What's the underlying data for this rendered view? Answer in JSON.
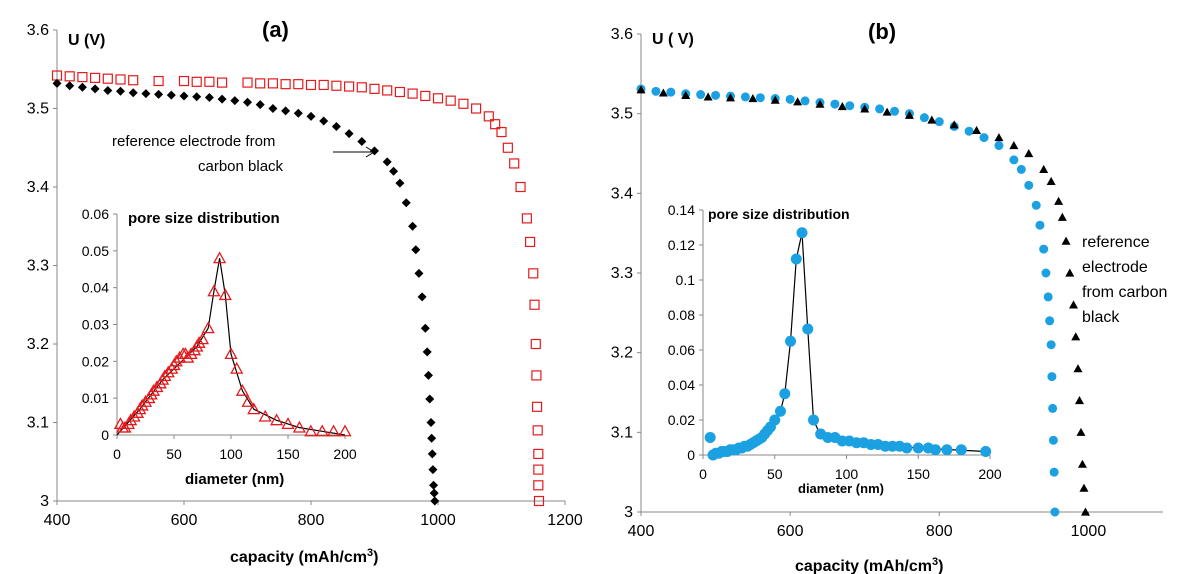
{
  "figure": {
    "a": {
      "panel_label": "(a)",
      "ylabel": "U (V)",
      "xlabel_main": "capacity  (mAh/cm",
      "xlabel_sup": "3",
      "xlabel_close": ")",
      "annotation_line1": "reference electrode  from",
      "annotation_line2": "carbon black",
      "inset_title": "pore size distribution",
      "inset_xlabel": "diameter (nm)"
    },
    "b": {
      "panel_label": "(b)",
      "ylabel": "U ( V)",
      "xlabel_main": "capacity  (mAh/cm",
      "xlabel_sup": "3",
      "xlabel_close": ")",
      "annotation_lines": [
        "reference",
        "electrode",
        "from carbon",
        "black"
      ],
      "inset_title": "pore size distribution",
      "inset_xlabel": "diameter (nm)"
    }
  },
  "chart_data": [
    {
      "panel": "(a)",
      "type": "scatter",
      "title": "",
      "xlabel": "capacity  (mAh/cm3)",
      "ylabel": "U (V)",
      "xlim": [
        400,
        1200
      ],
      "ylim": [
        3.0,
        3.6
      ],
      "xticks": [
        400,
        600,
        800,
        1000,
        1200
      ],
      "yticks": [
        3,
        3.1,
        3.2,
        3.3,
        3.4,
        3.5,
        3.6
      ],
      "grid": false,
      "series": [
        {
          "marker": "open-square",
          "color": "#e41a1c",
          "x": [
            400,
            420,
            440,
            460,
            480,
            500,
            520,
            560,
            600,
            620,
            640,
            660,
            700,
            720,
            740,
            760,
            780,
            800,
            820,
            840,
            860,
            880,
            900,
            920,
            940,
            960,
            980,
            1000,
            1020,
            1040,
            1060,
            1080,
            1090,
            1100,
            1110,
            1120,
            1130,
            1140,
            1145,
            1150,
            1152,
            1154,
            1155,
            1156,
            1157,
            1158,
            1158,
            1158,
            1159
          ],
          "y": [
            3.542,
            3.541,
            3.54,
            3.539,
            3.538,
            3.537,
            3.536,
            3.535,
            3.535,
            3.534,
            3.534,
            3.533,
            3.533,
            3.532,
            3.532,
            3.531,
            3.531,
            3.53,
            3.53,
            3.529,
            3.528,
            3.527,
            3.525,
            3.523,
            3.521,
            3.519,
            3.516,
            3.513,
            3.51,
            3.506,
            3.5,
            3.49,
            3.48,
            3.47,
            3.45,
            3.43,
            3.4,
            3.36,
            3.33,
            3.29,
            3.25,
            3.2,
            3.16,
            3.12,
            3.09,
            3.06,
            3.04,
            3.02,
            3.0
          ]
        },
        {
          "marker": "filled-diamond",
          "color": "#000000",
          "x": [
            400,
            420,
            440,
            460,
            480,
            500,
            520,
            540,
            560,
            580,
            600,
            620,
            640,
            660,
            680,
            700,
            720,
            740,
            760,
            780,
            800,
            820,
            840,
            860,
            880,
            900,
            920,
            930,
            940,
            950,
            960,
            965,
            970,
            975,
            980,
            983,
            985,
            987,
            989,
            990,
            991,
            992,
            993,
            994,
            995
          ],
          "y": [
            3.532,
            3.529,
            3.527,
            3.525,
            3.523,
            3.522,
            3.52,
            3.519,
            3.518,
            3.517,
            3.516,
            3.515,
            3.514,
            3.512,
            3.51,
            3.508,
            3.505,
            3.5,
            3.497,
            3.494,
            3.49,
            3.484,
            3.477,
            3.468,
            3.458,
            3.446,
            3.432,
            3.42,
            3.405,
            3.38,
            3.35,
            3.32,
            3.29,
            3.26,
            3.22,
            3.19,
            3.16,
            3.13,
            3.1,
            3.08,
            3.06,
            3.04,
            3.02,
            3.01,
            3.0
          ]
        }
      ],
      "annotation": "reference electrode  from carbon black",
      "inset": {
        "type": "line",
        "title": "pore size distribution",
        "xlabel": "diameter (nm)",
        "xlim": [
          0,
          200
        ],
        "ylim": [
          0,
          0.06
        ],
        "xticks": [
          0,
          50,
          100,
          150,
          200
        ],
        "yticks": [
          0,
          0.01,
          0.02,
          0.03,
          0.04,
          0.05,
          0.06
        ],
        "series": [
          {
            "marker": "open-triangle",
            "color": "#e41a1c",
            "x": [
              3,
              5,
              7,
              10,
              12,
              15,
              18,
              20,
              22,
              25,
              28,
              30,
              32,
              35,
              38,
              40,
              42,
              45,
              48,
              50,
              52,
              55,
              58,
              60,
              62,
              65,
              68,
              70,
              72,
              75,
              80,
              85,
              90,
              95,
              100,
              105,
              110,
              115,
              120,
              130,
              140,
              150,
              160,
              170,
              180,
              190,
              200
            ],
            "y": [
              0.003,
              0.002,
              0.002,
              0.003,
              0.004,
              0.005,
              0.006,
              0.007,
              0.008,
              0.009,
              0.01,
              0.011,
              0.012,
              0.013,
              0.014,
              0.015,
              0.016,
              0.017,
              0.018,
              0.019,
              0.02,
              0.021,
              0.022,
              0.022,
              0.021,
              0.022,
              0.023,
              0.024,
              0.025,
              0.026,
              0.029,
              0.039,
              0.048,
              0.038,
              0.022,
              0.018,
              0.012,
              0.009,
              0.007,
              0.005,
              0.004,
              0.003,
              0.002,
              0.001,
              0.001,
              0.001,
              0.001
            ]
          }
        ],
        "fit_line": {
          "color": "#000000",
          "x": [
            0,
            20,
            40,
            60,
            70,
            80,
            85,
            90,
            95,
            100,
            105,
            110,
            120,
            140,
            160,
            180,
            200
          ],
          "y": [
            0.0,
            0.007,
            0.015,
            0.021,
            0.024,
            0.029,
            0.039,
            0.048,
            0.038,
            0.022,
            0.017,
            0.012,
            0.007,
            0.004,
            0.002,
            0.001,
            0.0
          ]
        }
      }
    },
    {
      "panel": "(b)",
      "type": "scatter",
      "title": "",
      "xlabel": "capacity  (mAh/cm3)",
      "ylabel": "U ( V)",
      "xlim": [
        400,
        1100
      ],
      "ylim": [
        3.0,
        3.6
      ],
      "xticks": [
        400,
        600,
        800,
        1000
      ],
      "yticks": [
        3,
        3.1,
        3.2,
        3.3,
        3.4,
        3.5,
        3.6
      ],
      "grid": false,
      "series": [
        {
          "marker": "filled-circle",
          "color": "#1ba1e2",
          "x": [
            400,
            420,
            440,
            460,
            480,
            500,
            520,
            540,
            560,
            580,
            600,
            620,
            640,
            660,
            680,
            700,
            720,
            740,
            760,
            780,
            800,
            820,
            840,
            860,
            880,
            900,
            910,
            920,
            930,
            935,
            940,
            943,
            946,
            948,
            950,
            951,
            952,
            953,
            954,
            955
          ],
          "y": [
            3.531,
            3.528,
            3.527,
            3.525,
            3.524,
            3.523,
            3.522,
            3.521,
            3.52,
            3.519,
            3.518,
            3.516,
            3.514,
            3.512,
            3.51,
            3.508,
            3.506,
            3.503,
            3.5,
            3.495,
            3.49,
            3.484,
            3.478,
            3.47,
            3.46,
            3.442,
            3.43,
            3.41,
            3.385,
            3.36,
            3.33,
            3.3,
            3.27,
            3.24,
            3.21,
            3.17,
            3.13,
            3.09,
            3.05,
            3.0
          ]
        },
        {
          "marker": "filled-triangle",
          "color": "#000000",
          "x": [
            400,
            430,
            460,
            490,
            520,
            550,
            580,
            610,
            640,
            670,
            700,
            730,
            760,
            790,
            820,
            850,
            880,
            900,
            920,
            940,
            950,
            960,
            965,
            970,
            975,
            980,
            983,
            986,
            988,
            990,
            992,
            994,
            996
          ],
          "y": [
            3.53,
            3.526,
            3.523,
            3.521,
            3.52,
            3.519,
            3.517,
            3.515,
            3.512,
            3.509,
            3.506,
            3.502,
            3.498,
            3.492,
            3.486,
            3.479,
            3.47,
            3.46,
            3.45,
            3.43,
            3.415,
            3.39,
            3.37,
            3.34,
            3.3,
            3.26,
            3.22,
            3.18,
            3.14,
            3.1,
            3.06,
            3.03,
            3.0
          ]
        }
      ],
      "annotation": "reference electrode from carbon black",
      "inset": {
        "type": "line",
        "title": "pore size distribution",
        "xlabel": "diameter (nm)",
        "xlim": [
          0,
          200
        ],
        "ylim": [
          0,
          0.14
        ],
        "xticks": [
          0,
          50,
          100,
          150,
          200
        ],
        "yticks": [
          0,
          0.02,
          0.04,
          0.06,
          0.08,
          0.1,
          0.12,
          0.14
        ],
        "series": [
          {
            "marker": "filled-circle",
            "color": "#1ba1e2",
            "x": [
              5,
              7,
              9,
              11,
              13,
              15,
              17,
              19,
              21,
              23,
              25,
              27,
              29,
              31,
              33,
              35,
              37,
              39,
              41,
              43,
              45,
              47,
              50,
              54,
              57,
              61,
              65,
              69,
              73,
              77,
              82,
              87,
              92,
              97,
              102,
              107,
              112,
              117,
              122,
              127,
              132,
              137,
              142,
              150,
              157,
              162,
              170,
              180,
              197
            ],
            "y": [
              0.01,
              0.0,
              0.001,
              0.001,
              0.002,
              0.002,
              0.002,
              0.003,
              0.003,
              0.003,
              0.004,
              0.004,
              0.005,
              0.005,
              0.006,
              0.007,
              0.008,
              0.009,
              0.01,
              0.012,
              0.014,
              0.016,
              0.02,
              0.025,
              0.035,
              0.065,
              0.112,
              0.127,
              0.072,
              0.02,
              0.012,
              0.01,
              0.01,
              0.008,
              0.008,
              0.007,
              0.007,
              0.006,
              0.006,
              0.005,
              0.005,
              0.005,
              0.004,
              0.004,
              0.004,
              0.003,
              0.003,
              0.003,
              0.002
            ]
          }
        ],
        "fit_line": {
          "color": "#000000",
          "x": [
            5,
            20,
            35,
            45,
            50,
            54,
            57,
            61,
            65,
            69,
            73,
            77,
            82,
            95,
            120,
            150,
            197
          ],
          "y": [
            0.0,
            0.003,
            0.007,
            0.013,
            0.02,
            0.025,
            0.035,
            0.065,
            0.112,
            0.127,
            0.072,
            0.02,
            0.011,
            0.008,
            0.006,
            0.004,
            0.002
          ]
        }
      }
    }
  ]
}
